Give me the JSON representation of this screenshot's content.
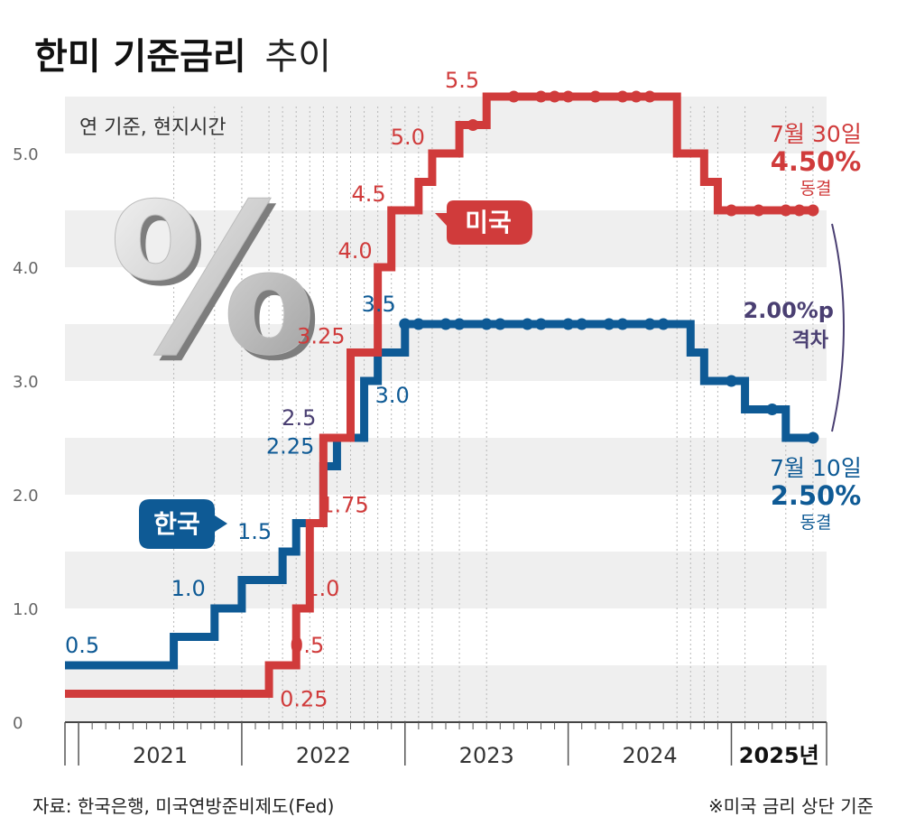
{
  "title": {
    "main": "한미 기준금리",
    "sub": "추이"
  },
  "unit_note": "연 기준, 현지시간",
  "decor": {
    "percent_symbol": "%"
  },
  "source": "자료: 한국은행, 미국연방준비제도(Fed)",
  "footnote": "※미국 금리 상단 기준",
  "colors": {
    "us": "#d03b3b",
    "korea": "#0e5a95",
    "gap": "#4a3f72",
    "axis": "#666666",
    "band": "#efefef"
  },
  "chart_data": {
    "type": "line",
    "step": true,
    "ylim": [
      0,
      5.5
    ],
    "yticks": [
      0,
      1.0,
      2.0,
      3.0,
      4.0,
      5.0
    ],
    "ytick_labels": [
      "0",
      "1.0",
      "2.0",
      "3.0",
      "4.0",
      "5.0"
    ],
    "x_range": [
      "2020-12",
      "2025-08"
    ],
    "x_year_labels": [
      {
        "label": "2021",
        "year": 2021
      },
      {
        "label": "2022",
        "year": 2022
      },
      {
        "label": "2023",
        "year": 2023
      },
      {
        "label": "2024",
        "year": 2024
      },
      {
        "label": "2025년",
        "year": 2025
      }
    ],
    "series": [
      {
        "name": "미국",
        "key": "us",
        "steps": [
          {
            "date": "2020-12",
            "value": 0.25
          },
          {
            "date": "2022-03",
            "value": 0.5
          },
          {
            "date": "2022-05",
            "value": 1.0
          },
          {
            "date": "2022-06",
            "value": 1.75
          },
          {
            "date": "2022-07",
            "value": 2.5
          },
          {
            "date": "2022-09",
            "value": 3.25
          },
          {
            "date": "2022-11",
            "value": 4.0
          },
          {
            "date": "2022-12",
            "value": 4.5
          },
          {
            "date": "2023-02",
            "value": 4.75
          },
          {
            "date": "2023-03",
            "value": 5.0
          },
          {
            "date": "2023-05",
            "value": 5.25
          },
          {
            "date": "2023-07",
            "value": 5.5
          },
          {
            "date": "2024-09",
            "value": 5.0
          },
          {
            "date": "2024-11",
            "value": 4.75
          },
          {
            "date": "2024-12",
            "value": 4.5
          },
          {
            "date": "2025-07",
            "value": 4.5
          }
        ],
        "hold_points": [
          {
            "date": "2023-06",
            "value": 5.25
          },
          {
            "date": "2023-09",
            "value": 5.5
          },
          {
            "date": "2023-11",
            "value": 5.5
          },
          {
            "date": "2023-12",
            "value": 5.5
          },
          {
            "date": "2024-01",
            "value": 5.5
          },
          {
            "date": "2024-03",
            "value": 5.5
          },
          {
            "date": "2024-05",
            "value": 5.5
          },
          {
            "date": "2024-06",
            "value": 5.5
          },
          {
            "date": "2024-07",
            "value": 5.5
          },
          {
            "date": "2025-01",
            "value": 4.5
          },
          {
            "date": "2025-03",
            "value": 4.5
          },
          {
            "date": "2025-05",
            "value": 4.5
          },
          {
            "date": "2025-06",
            "value": 4.5
          },
          {
            "date": "2025-07",
            "value": 4.5
          }
        ],
        "labels": [
          {
            "text": "0.25",
            "date": "2022-03",
            "value": 0.25
          },
          {
            "text": "0.5",
            "date": "2022-04",
            "value": 0.5
          },
          {
            "text": "1.0",
            "date": "2022-05",
            "value": 1.0
          },
          {
            "text": "1.75",
            "date": "2022-06",
            "value": 1.75
          },
          {
            "text": "3.25",
            "date": "2022-09",
            "value": 3.25
          },
          {
            "text": "4.0",
            "date": "2022-11",
            "value": 4.0
          },
          {
            "text": "4.5",
            "date": "2022-12",
            "value": 4.5
          },
          {
            "text": "5.0",
            "date": "2023-03",
            "value": 5.0
          },
          {
            "text": "5.5",
            "date": "2023-07",
            "value": 5.5
          }
        ],
        "badge": "미국",
        "end_note": {
          "date_text": "7월 30일",
          "rate_text": "4.50%",
          "status_text": "동결"
        }
      },
      {
        "name": "한국",
        "key": "korea",
        "steps": [
          {
            "date": "2020-12",
            "value": 0.5
          },
          {
            "date": "2021-08",
            "value": 0.75
          },
          {
            "date": "2021-11",
            "value": 1.0
          },
          {
            "date": "2022-01",
            "value": 1.25
          },
          {
            "date": "2022-04",
            "value": 1.5
          },
          {
            "date": "2022-05",
            "value": 1.75
          },
          {
            "date": "2022-07",
            "value": 2.25
          },
          {
            "date": "2022-08",
            "value": 2.5
          },
          {
            "date": "2022-10",
            "value": 3.0
          },
          {
            "date": "2022-11",
            "value": 3.25
          },
          {
            "date": "2023-01",
            "value": 3.5
          },
          {
            "date": "2024-10",
            "value": 3.25
          },
          {
            "date": "2024-11",
            "value": 3.0
          },
          {
            "date": "2025-02",
            "value": 2.75
          },
          {
            "date": "2025-05",
            "value": 2.5
          },
          {
            "date": "2025-07",
            "value": 2.5
          }
        ],
        "hold_points": [
          {
            "date": "2023-01",
            "value": 3.5
          },
          {
            "date": "2023-02",
            "value": 3.5
          },
          {
            "date": "2023-04",
            "value": 3.5
          },
          {
            "date": "2023-05",
            "value": 3.5
          },
          {
            "date": "2023-07",
            "value": 3.5
          },
          {
            "date": "2023-08",
            "value": 3.5
          },
          {
            "date": "2023-10",
            "value": 3.5
          },
          {
            "date": "2023-11",
            "value": 3.5
          },
          {
            "date": "2024-01",
            "value": 3.5
          },
          {
            "date": "2024-02",
            "value": 3.5
          },
          {
            "date": "2024-04",
            "value": 3.5
          },
          {
            "date": "2024-05",
            "value": 3.5
          },
          {
            "date": "2024-07",
            "value": 3.5
          },
          {
            "date": "2024-08",
            "value": 3.5
          },
          {
            "date": "2025-01",
            "value": 3.0
          },
          {
            "date": "2025-04",
            "value": 2.75
          },
          {
            "date": "2025-07",
            "value": 2.5
          }
        ],
        "labels": [
          {
            "text": "0.5",
            "date": "2020-12",
            "value": 0.5
          },
          {
            "text": "1.0",
            "date": "2021-11",
            "value": 1.0
          },
          {
            "text": "1.5",
            "date": "2022-04",
            "value": 1.5
          },
          {
            "text": "2.25",
            "date": "2022-07",
            "value": 2.25
          },
          {
            "text": "3.0",
            "date": "2022-10",
            "value": 3.0
          },
          {
            "text": "3.5",
            "date": "2023-01",
            "value": 3.5
          }
        ],
        "badge": "한국",
        "end_note": {
          "date_text": "7월 10일",
          "rate_text": "2.50%",
          "status_text": "동결"
        }
      }
    ],
    "annotations": {
      "us_2_5": {
        "text": "2.5",
        "date": "2022-07",
        "value": 2.5
      },
      "gap": {
        "line1": "2.00%p",
        "line2": "격차"
      }
    }
  }
}
